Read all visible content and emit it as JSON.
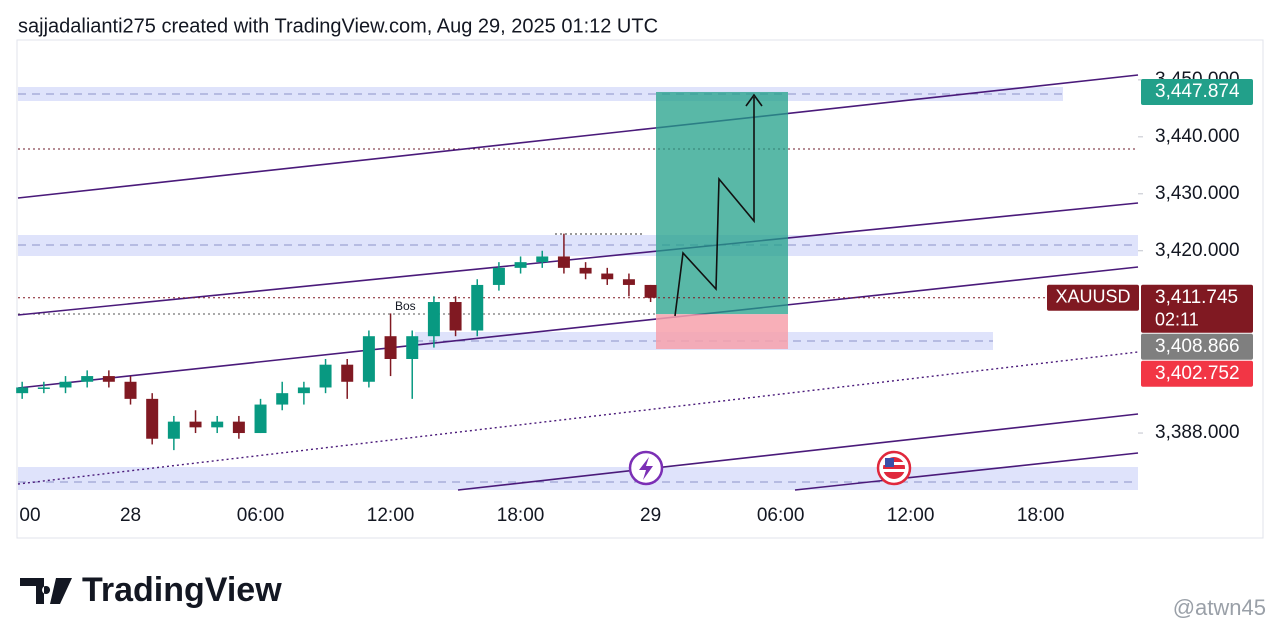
{
  "header": "sajjadalianti275 created with TradingView.com, Aug 29, 2025 01:12 UTC",
  "chart_data": {
    "type": "candlestick",
    "x": [
      "00",
      null,
      null,
      null,
      null,
      null,
      "28",
      null,
      null,
      null,
      null,
      null,
      "06:00",
      null,
      null,
      null,
      null,
      null,
      "12:00",
      null,
      null,
      null,
      null,
      null,
      "18:00",
      null,
      null,
      null,
      null,
      null,
      "29",
      null,
      null,
      null,
      null,
      null,
      "06:00",
      null,
      null,
      null,
      null,
      null,
      "12:00",
      null,
      null,
      null,
      null,
      null,
      "18:00",
      null,
      null,
      null,
      null
    ],
    "open": [
      3396,
      3395,
      3396,
      3396,
      3397,
      3398,
      3397,
      3394,
      3387,
      3390,
      3389,
      3390,
      3388,
      3393,
      3395,
      3396,
      3400,
      3397,
      3405,
      3401,
      3405,
      3411,
      3406,
      3414,
      3417,
      3418,
      3419,
      3417,
      3416,
      3415,
      3414,
      null,
      null,
      null,
      null,
      null,
      null,
      null,
      null,
      null,
      null,
      null,
      null,
      null,
      null,
      null,
      null,
      null,
      null,
      null,
      null,
      null,
      null
    ],
    "high": [
      3397,
      3397,
      3397,
      3398,
      3399,
      3399,
      3398,
      3395,
      3391,
      3392,
      3391,
      3391,
      3394,
      3397,
      3397,
      3401,
      3401,
      3406,
      3409,
      3406,
      3412,
      3412,
      3415,
      3418,
      3419,
      3420,
      3423,
      3418,
      3417,
      3416,
      3414,
      null,
      null,
      null,
      null,
      null,
      null,
      null,
      null,
      null,
      null,
      null,
      null,
      null,
      null,
      null,
      null,
      null,
      null,
      null,
      null,
      null,
      null
    ],
    "low": [
      3394,
      3394,
      3395,
      3395,
      3396,
      3396,
      3393,
      3386,
      3385,
      3388,
      3388,
      3387,
      3388,
      3392,
      3393,
      3395,
      3394,
      3396,
      3398,
      3394,
      3403,
      3405,
      3405,
      3413,
      3416,
      3417,
      3416,
      3415,
      3414,
      3412,
      3411,
      null,
      null,
      null,
      null,
      null,
      null,
      null,
      null,
      null,
      null,
      null,
      null,
      null,
      null,
      null,
      null,
      null,
      null,
      null,
      null,
      null,
      null
    ],
    "close": [
      3395,
      3396,
      3396,
      3397,
      3398,
      3397,
      3394,
      3387,
      3390,
      3389,
      3390,
      3388,
      3393,
      3395,
      3396,
      3400,
      3397,
      3405,
      3401,
      3405,
      3411,
      3406,
      3414,
      3417,
      3418,
      3419,
      3417,
      3416,
      3415,
      3414,
      3411.745,
      null,
      null,
      null,
      null,
      null,
      null,
      null,
      null,
      null,
      null,
      null,
      null,
      null,
      null,
      null,
      null,
      null,
      null,
      null,
      null,
      null,
      null
    ],
    "up_color": "#089981",
    "down_color": "#801922",
    "ylim": [
      3378,
      3457
    ],
    "yticks": [
      {
        "value": 3450,
        "label": "3,450.000"
      },
      {
        "value": 3440,
        "label": "3,440.000"
      },
      {
        "value": 3430,
        "label": "3,430.000"
      },
      {
        "value": 3420,
        "label": "3,420.000"
      },
      {
        "value": 3388,
        "label": "3,388.000"
      }
    ],
    "symbol": "XAUUSD",
    "countdown": "02:11",
    "price_labels": [
      {
        "value": 3447.874,
        "label": "3,447.874",
        "color": "#22a08a"
      },
      {
        "value": 3411.745,
        "label": "3,411.745",
        "color": "#801922"
      },
      {
        "value": 3408.866,
        "label": "3,408.866",
        "color": "#7f7f7f"
      },
      {
        "value": 3402.752,
        "label": "3,402.752",
        "color": "#f23645"
      }
    ],
    "annotation": "Bos"
  },
  "logo": "TradingView",
  "watermark": "@atwn45"
}
